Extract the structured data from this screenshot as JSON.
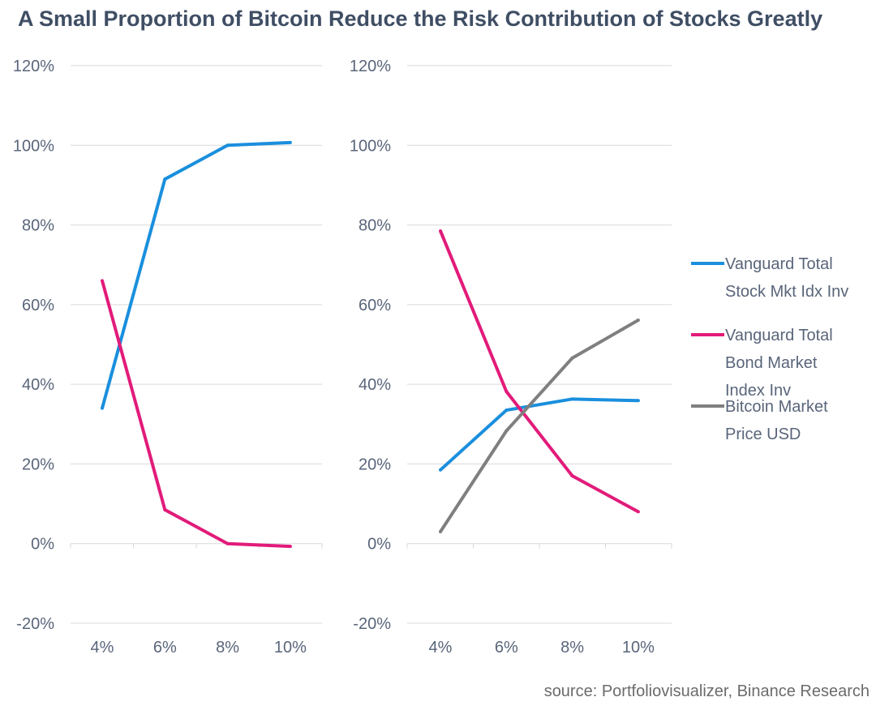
{
  "title": "A Small Proportion of Bitcoin Reduce the Risk Contribution of Stocks Greatly",
  "source": "source: Portfoliovisualizer, Binance Research",
  "colors": {
    "stock": "#1a8fdd",
    "bond": "#e21b7a",
    "bitcoin": "#7f7f7f",
    "grid": "#d9d9d9",
    "text": "#59657a"
  },
  "chart_data": [
    {
      "type": "line",
      "title": "",
      "categories": [
        "4%",
        "6%",
        "8%",
        "10%"
      ],
      "ylim": [
        -20,
        120
      ],
      "yticks": [
        "-20%",
        "0%",
        "20%",
        "40%",
        "60%",
        "80%",
        "100%",
        "120%"
      ],
      "series": [
        {
          "name": "Vanguard Total Stock Mkt Idx Inv",
          "color": "#1a8fdd",
          "values": [
            34,
            91.5,
            100,
            100.7
          ]
        },
        {
          "name": "Vanguard Total Bond Market Index Inv",
          "color": "#e21b7a",
          "values": [
            66,
            8.5,
            0,
            -0.7
          ]
        }
      ]
    },
    {
      "type": "line",
      "title": "",
      "categories": [
        "4%",
        "6%",
        "8%",
        "10%"
      ],
      "ylim": [
        -20,
        120
      ],
      "yticks": [
        "-20%",
        "0%",
        "20%",
        "40%",
        "60%",
        "80%",
        "100%",
        "120%"
      ],
      "series": [
        {
          "name": "Vanguard Total Stock Mkt Idx Inv",
          "color": "#1a8fdd",
          "values": [
            18.5,
            33.5,
            36.3,
            35.9
          ]
        },
        {
          "name": "Vanguard Total Bond Market Index Inv",
          "color": "#e21b7a",
          "values": [
            78.5,
            38.2,
            17,
            8
          ]
        },
        {
          "name": "Bitcoin Market Price USD",
          "color": "#7f7f7f",
          "values": [
            3,
            28.3,
            46.6,
            56.1
          ]
        }
      ]
    }
  ],
  "legend": [
    {
      "lines": [
        "Vanguard Total",
        "Stock Mkt Idx Inv"
      ],
      "color": "#1a8fdd"
    },
    {
      "lines": [
        "Vanguard Total",
        "Bond Market",
        "Index Inv"
      ],
      "color": "#e21b7a"
    },
    {
      "lines": [
        "Bitcoin Market",
        "Price USD"
      ],
      "color": "#7f7f7f"
    }
  ]
}
